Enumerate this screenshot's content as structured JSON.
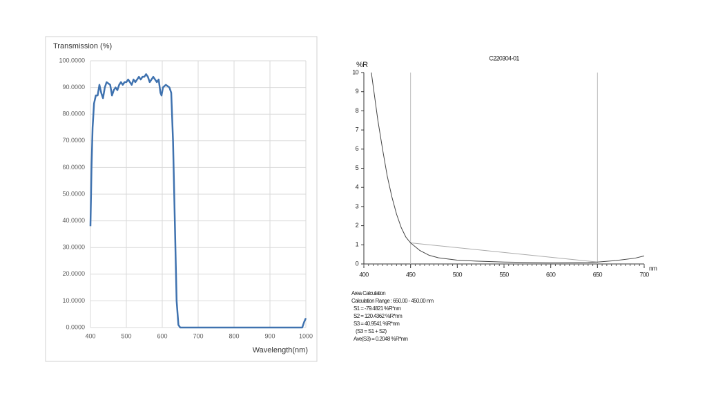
{
  "chart_data": [
    {
      "type": "line",
      "ylabel": "Transmission (%)",
      "xlabel": "Wavelength(nm)",
      "color": "#3f72af",
      "grid": true,
      "xlim": [
        400,
        1000
      ],
      "xticks": [
        400,
        500,
        600,
        700,
        800,
        900,
        1000
      ],
      "ylim": [
        0,
        100
      ],
      "yticks": [
        {
          "value": 0,
          "label": "0.0000"
        },
        {
          "value": 10,
          "label": "10.0000"
        },
        {
          "value": 20,
          "label": "20.0000"
        },
        {
          "value": 30,
          "label": "30.0000"
        },
        {
          "value": 40,
          "label": "40.0000"
        },
        {
          "value": 50,
          "label": "50.0000"
        },
        {
          "value": 60,
          "label": "60.0000"
        },
        {
          "value": 70,
          "label": "70.0000"
        },
        {
          "value": 80,
          "label": "80.0000"
        },
        {
          "value": 90,
          "label": "90.0000"
        },
        {
          "value": 100,
          "label": "100.0000"
        }
      ],
      "x": [
        400,
        403,
        406,
        410,
        415,
        420,
        425,
        430,
        435,
        440,
        445,
        455,
        460,
        465,
        470,
        475,
        480,
        485,
        490,
        495,
        500,
        505,
        510,
        515,
        520,
        525,
        530,
        535,
        540,
        545,
        550,
        555,
        560,
        565,
        570,
        575,
        580,
        585,
        590,
        595,
        598,
        602,
        610,
        620,
        625,
        630,
        635,
        640,
        645,
        650,
        700,
        800,
        900,
        950,
        990,
        995,
        1000
      ],
      "values": [
        38,
        60,
        75,
        84,
        87,
        87,
        91,
        88,
        86,
        90,
        92,
        91,
        87,
        89,
        90,
        89,
        91,
        92,
        91,
        92,
        92,
        93,
        92,
        91,
        93,
        92,
        93,
        94,
        93,
        94,
        94,
        95,
        94,
        92,
        93,
        94,
        93,
        92,
        93,
        88,
        87,
        90,
        91,
        90,
        88,
        70,
        40,
        10,
        1,
        0,
        0,
        0,
        0,
        0,
        0,
        2,
        3.5
      ]
    },
    {
      "type": "line",
      "title": "C220304-01",
      "ylabel": "%R",
      "xlabel": "nm",
      "color": "#444444",
      "grid": false,
      "xlim": [
        400,
        700
      ],
      "xticks": [
        400,
        450,
        500,
        550,
        600,
        650,
        700
      ],
      "ylim": [
        0,
        10
      ],
      "yticks": [
        0,
        1,
        2,
        3,
        4,
        5,
        6,
        7,
        8,
        9,
        10
      ],
      "x": [
        408,
        415,
        420,
        425,
        430,
        435,
        440,
        445,
        450,
        460,
        470,
        480,
        500,
        520,
        550,
        600,
        640,
        650,
        670,
        690,
        700
      ],
      "values": [
        10,
        7.5,
        6.0,
        4.6,
        3.5,
        2.6,
        1.9,
        1.4,
        1.1,
        0.7,
        0.45,
        0.32,
        0.2,
        0.15,
        0.1,
        0.06,
        0.08,
        0.1,
        0.18,
        0.3,
        0.42
      ],
      "vlines": [
        450,
        650
      ],
      "baseline": {
        "x": [
          450,
          650
        ],
        "y": [
          1.1,
          0.1
        ]
      },
      "annotations": [
        "Area Calculation",
        "Calculation Range : 650.00 - 450.00 nm",
        "S1 = -79.4821 %R*nm",
        "S2 = 120.4362 %R*nm",
        "S3 = 40.9541 %R*nm",
        "(S3 = S1 + S2)",
        "Ave(S3) = 0.2048 %R*nm"
      ]
    }
  ]
}
